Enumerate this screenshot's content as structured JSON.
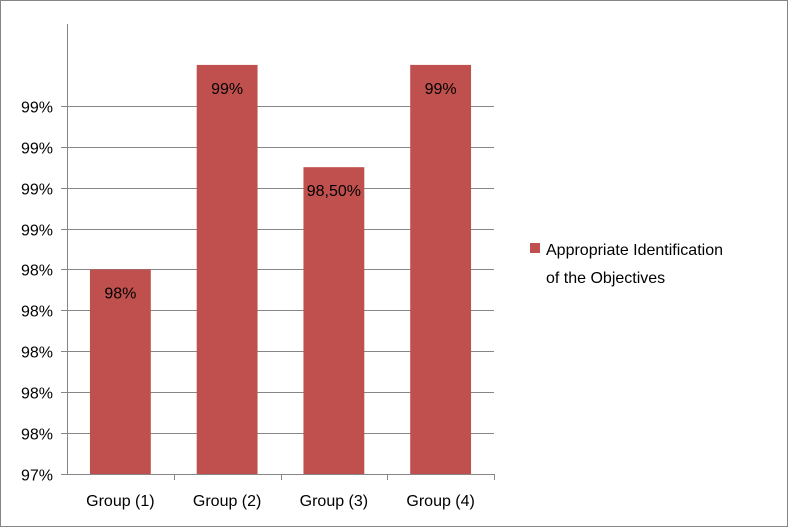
{
  "chart_data": {
    "type": "bar",
    "categories": [
      "Group (1)",
      "Group (2)",
      "Group (3)",
      "Group (4)"
    ],
    "series": [
      {
        "name": "Appropriate Identification of the Objectives",
        "values": [
          98,
          99,
          98.5,
          99
        ],
        "data_labels": [
          "98%",
          "99%",
          "98,50%",
          "99%"
        ],
        "color": "#C0504D"
      }
    ],
    "y_tick_labels": [
      "97%",
      "98%",
      "98%",
      "98%",
      "98%",
      "98%",
      "99%",
      "99%",
      "99%",
      "99%"
    ],
    "ylim": [
      97.0,
      99.2
    ],
    "y_tick_step": 0.2,
    "grid": true,
    "gridline_color": "#868686",
    "legend": {
      "position": "right",
      "lines": [
        "Appropriate Identification",
        "of the Objectives"
      ]
    },
    "title": "",
    "xlabel": "",
    "ylabel": ""
  }
}
